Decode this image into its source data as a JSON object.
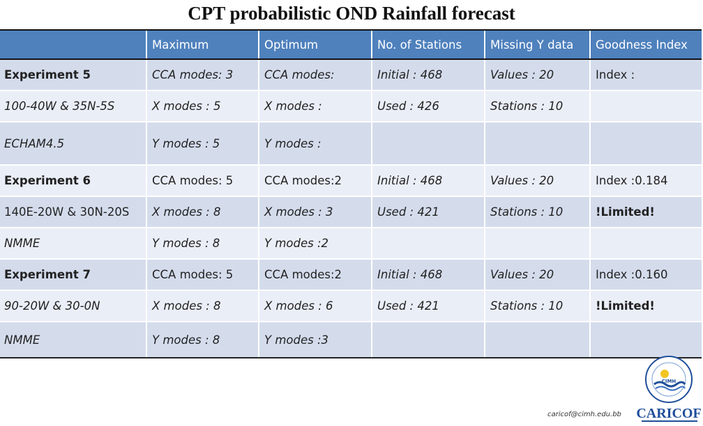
{
  "title": "CPT probabilistic  OND Rainfall forecast",
  "columns": [
    "",
    "Maximum",
    "Optimum",
    "No. of Stations",
    "Missing Y data",
    "Goodness Index"
  ],
  "rows": [
    {
      "style": "band",
      "cells": [
        "Experiment 5",
        "CCA modes: 3",
        "CCA modes:",
        "Initial : 468",
        "Values : 20",
        "Index :"
      ]
    },
    {
      "style": "plain",
      "cells": [
        "100-40W & 35N-5S",
        "X modes : 5",
        "X modes :",
        "Used : 426",
        "Stations : 10",
        ""
      ]
    },
    {
      "style": "band",
      "cells": [
        "ECHAM4.5",
        "Y modes : 5",
        "Y modes :",
        "",
        "",
        ""
      ]
    },
    {
      "style": "plain",
      "cells": [
        "Experiment 6",
        "CCA modes: 5",
        "CCA modes:2",
        "Initial : 468",
        "Values : 20",
        "Index :0.184"
      ]
    },
    {
      "style": "band",
      "cells": [
        "140E-20W & 30N-20S",
        "X modes : 8",
        "X modes : 3",
        "Used : 421",
        "Stations : 10",
        "!Limited!"
      ]
    },
    {
      "style": "plain",
      "cells": [
        "NMME",
        "Y modes : 8",
        "Y modes :2",
        "",
        "",
        ""
      ]
    },
    {
      "style": "band",
      "cells": [
        "Experiment 7",
        "CCA modes: 5",
        "CCA modes:2",
        "Initial : 468",
        "Values : 20",
        "Index :0.160"
      ]
    },
    {
      "style": "plain",
      "cells": [
        "90-20W & 30-0N",
        "X modes : 8",
        "X modes : 6",
        "Used : 421",
        "Stations : 10",
        "!Limited!"
      ]
    },
    {
      "style": "band",
      "cells": [
        "NMME",
        "Y modes : 8",
        "Y modes :3",
        "",
        "",
        ""
      ]
    }
  ],
  "footer": {
    "email": "caricof@cimh.edu.bb",
    "logo_seal_text": "CIMH",
    "logo_brand_text": "CARICOF"
  },
  "colors": {
    "header_bg": "#4f81bd",
    "band_bg": "#d4dcec",
    "plain_bg": "#eaeef7",
    "logo_blue": "#1f4e9a"
  }
}
